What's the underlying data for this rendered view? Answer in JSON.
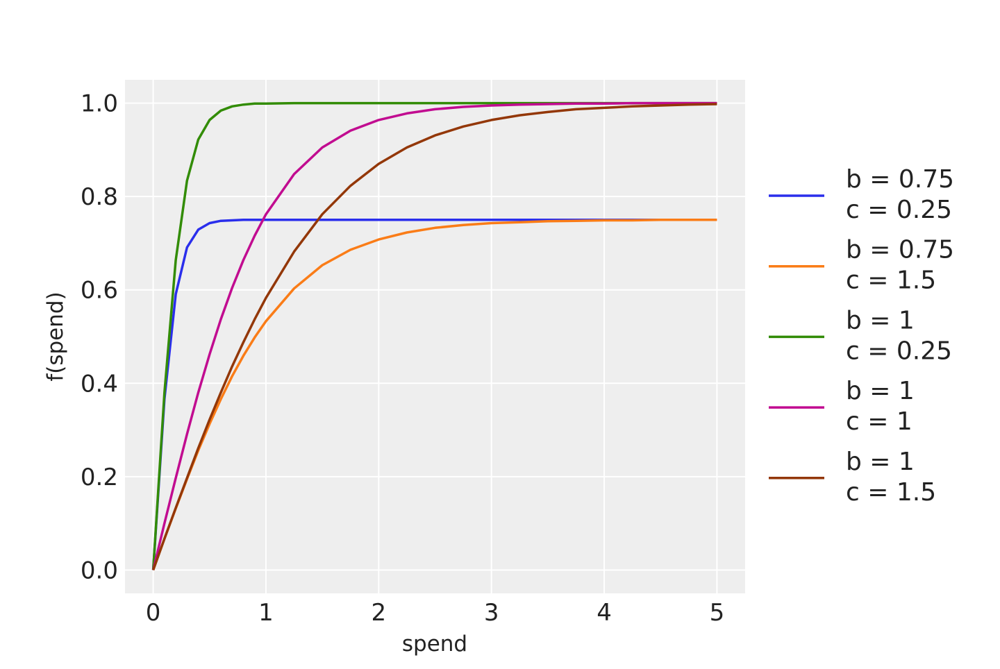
{
  "chart_data": {
    "type": "line",
    "title": "",
    "xlabel": "spend",
    "ylabel": "f(spend)",
    "xlim": [
      -0.25,
      5.25
    ],
    "ylim": [
      -0.05,
      1.05
    ],
    "xticks": [
      "0",
      "1",
      "2",
      "3",
      "4",
      "5"
    ],
    "yticks": [
      "0.0",
      "0.2",
      "0.4",
      "0.6",
      "0.8",
      "1.0"
    ],
    "grid": true,
    "background": "#eeeeee",
    "legend_position": "right",
    "x": [
      0,
      0.1,
      0.2,
      0.3,
      0.4,
      0.5,
      0.6,
      0.7,
      0.8,
      0.9,
      1.0,
      1.25,
      1.5,
      1.75,
      2.0,
      2.25,
      2.5,
      2.75,
      3.0,
      3.25,
      3.5,
      3.75,
      4.0,
      4.25,
      4.5,
      4.75,
      5.0
    ],
    "series": [
      {
        "name": "b = 0.75\nc = 0.25",
        "line1": "b = 0.75",
        "line2": "c = 0.25",
        "color": "#2a2eec",
        "values": [
          0,
          0.366,
          0.591,
          0.691,
          0.729,
          0.743,
          0.748,
          0.749,
          0.75,
          0.75,
          0.75,
          0.75,
          0.75,
          0.75,
          0.75,
          0.75,
          0.75,
          0.75,
          0.75,
          0.75,
          0.75,
          0.75,
          0.75,
          0.75,
          0.75,
          0.75,
          0.75
        ]
      },
      {
        "name": "b = 0.75\nc = 1.5",
        "line1": "b = 0.75",
        "line2": "c = 1.5",
        "color": "#fa7c17",
        "values": [
          0,
          0.067,
          0.132,
          0.195,
          0.256,
          0.313,
          0.366,
          0.415,
          0.459,
          0.498,
          0.533,
          0.603,
          0.653,
          0.686,
          0.708,
          0.723,
          0.733,
          0.739,
          0.743,
          0.745,
          0.747,
          0.748,
          0.749,
          0.749,
          0.75,
          0.75,
          0.75
        ]
      },
      {
        "name": "b = 1\nc = 0.25",
        "line1": "b = 1",
        "line2": "c = 0.25",
        "color": "#328c06",
        "values": [
          0,
          0.38,
          0.664,
          0.834,
          0.922,
          0.964,
          0.984,
          0.993,
          0.997,
          0.999,
          0.999,
          1.0,
          1.0,
          1.0,
          1.0,
          1.0,
          1.0,
          1.0,
          1.0,
          1.0,
          1.0,
          1.0,
          1.0,
          1.0,
          1.0,
          1.0,
          1.0
        ]
      },
      {
        "name": "b = 1\nc = 1",
        "line1": "b = 1",
        "line2": "c = 1",
        "color": "#c10c90",
        "values": [
          0,
          0.1,
          0.197,
          0.291,
          0.38,
          0.462,
          0.537,
          0.604,
          0.664,
          0.716,
          0.762,
          0.848,
          0.905,
          0.941,
          0.964,
          0.978,
          0.987,
          0.992,
          0.995,
          0.997,
          0.998,
          0.999,
          0.999,
          1.0,
          1.0,
          1.0,
          1.0
        ]
      },
      {
        "name": "b = 1\nc = 1.5",
        "line1": "b = 1",
        "line2": "c = 1.5",
        "color": "#933708",
        "values": [
          0,
          0.067,
          0.133,
          0.197,
          0.261,
          0.322,
          0.38,
          0.436,
          0.488,
          0.537,
          0.583,
          0.682,
          0.762,
          0.823,
          0.87,
          0.905,
          0.931,
          0.95,
          0.964,
          0.974,
          0.981,
          0.987,
          0.99,
          0.993,
          0.995,
          0.997,
          0.998
        ]
      }
    ]
  }
}
